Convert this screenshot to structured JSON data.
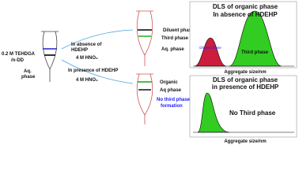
{
  "left": {
    "solvent_line1": "0.2 M TEHDGA",
    "solvent_line2": "/n-DD",
    "aq_line1": "Aq.",
    "aq_line2": "phase"
  },
  "routes": {
    "absence": {
      "line1": "In absence of",
      "line2": "HDEHP",
      "acid": "4 M HNO₃"
    },
    "presence": {
      "line1": "In presence of HDEHP",
      "acid": "4 M HNO₃"
    }
  },
  "top_funnel": {
    "labels": [
      "Diluent phase",
      "Third phase",
      "Aq. phase"
    ]
  },
  "bottom_funnel": {
    "labels": [
      "Organic",
      "Aq phase"
    ],
    "note_line1": "No third phase",
    "note_line2": "formation"
  },
  "top_plot": {
    "title_line1": "DLS of organic phase",
    "title_line2": "In absence of HDEHP",
    "peak1_label": "Diluent phase",
    "peak2_label": "Third phase",
    "x_label": "Aggregate size/nm"
  },
  "bottom_plot": {
    "title_line1": "DLS of organic phase",
    "title_line2": "in presence of HDEHP",
    "note": "No Third phase",
    "x_label": "Aggregate size/nm"
  }
}
